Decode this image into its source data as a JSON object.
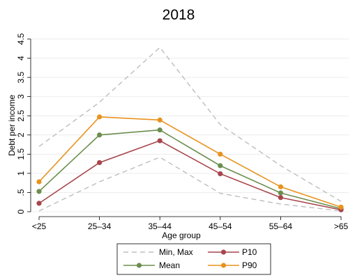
{
  "chart_data": {
    "type": "line",
    "title": "2018",
    "xlabel": "Age group",
    "ylabel": "Debt per income",
    "categories": [
      "<25",
      "25–34",
      "35–44",
      "45–54",
      "55–64",
      ">65"
    ],
    "y_ticks": [
      0,
      0.5,
      1,
      1.5,
      2,
      2.5,
      3,
      3.5,
      4,
      4.5
    ],
    "y_tick_labels": [
      "0",
      ".5",
      "1",
      "1.5",
      "2",
      "2.5",
      "3",
      "3.5",
      "4",
      "4.5"
    ],
    "ylim": [
      0,
      4.5
    ],
    "grid": true,
    "legend_placement": "bottom",
    "series": [
      {
        "name": "Min, Max",
        "role": "max",
        "style": "dashed",
        "color": "#bdbdbd",
        "markers": false,
        "values": [
          1.7,
          2.85,
          4.28,
          2.27,
          1.2,
          0.27
        ]
      },
      {
        "role": "min",
        "style": "dashed",
        "color": "#bdbdbd",
        "markers": false,
        "values": [
          0.02,
          0.78,
          1.42,
          0.48,
          0.2,
          0.02
        ]
      },
      {
        "name": "Mean",
        "role": "mean",
        "style": "solid",
        "color": "#6b8e4e",
        "markers": true,
        "values": [
          0.53,
          2.0,
          2.13,
          1.2,
          0.49,
          0.08
        ]
      },
      {
        "name": "P10",
        "role": "p10",
        "style": "solid",
        "color": "#a8454c",
        "markers": true,
        "values": [
          0.22,
          1.28,
          1.85,
          0.99,
          0.37,
          0.05
        ]
      },
      {
        "name": "P90",
        "role": "p90",
        "style": "solid",
        "color": "#e8931e",
        "markers": true,
        "values": [
          0.78,
          2.47,
          2.39,
          1.5,
          0.65,
          0.12
        ]
      }
    ],
    "legend": [
      {
        "label": "Min, Max",
        "series_role": "max"
      },
      {
        "label": "P10",
        "series_role": "p10"
      },
      {
        "label": "Mean",
        "series_role": "mean"
      },
      {
        "label": "P90",
        "series_role": "p90"
      }
    ]
  }
}
